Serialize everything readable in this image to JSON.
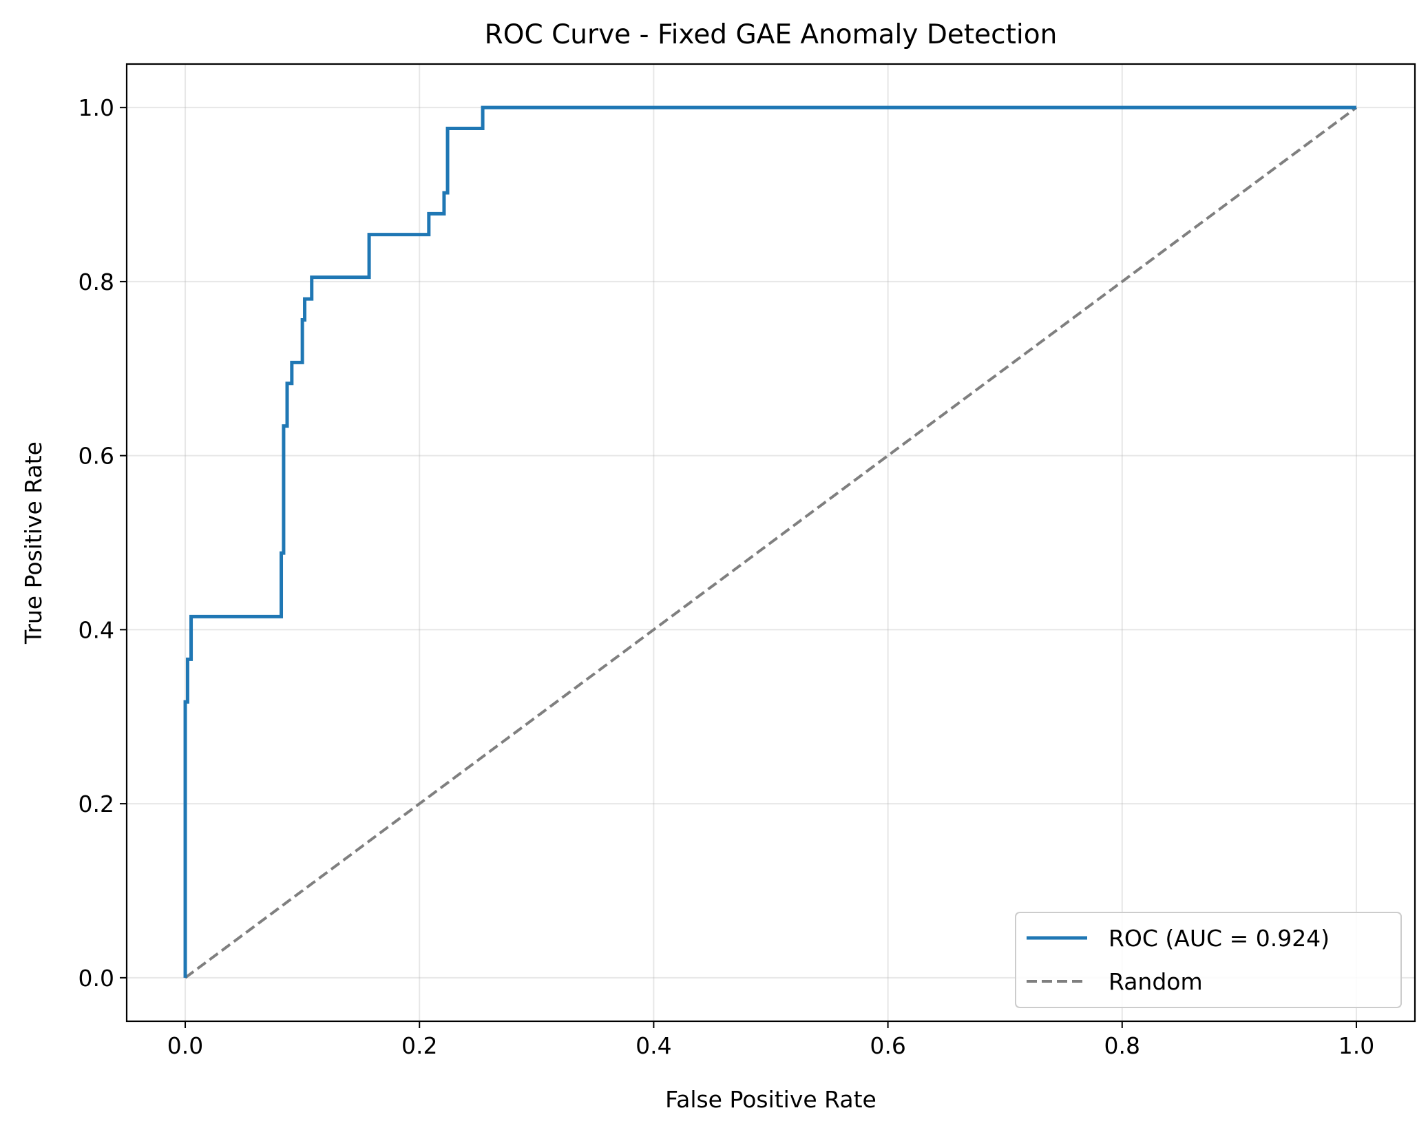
{
  "chart_data": {
    "type": "line",
    "title": "ROC Curve - Fixed GAE Anomaly Detection",
    "xlabel": "False Positive Rate",
    "ylabel": "True Positive Rate",
    "xlim": [
      -0.05,
      1.05
    ],
    "ylim": [
      -0.05,
      1.05
    ],
    "xticks": [
      0.0,
      0.2,
      0.4,
      0.6,
      0.8,
      1.0
    ],
    "yticks": [
      0.0,
      0.2,
      0.4,
      0.6,
      0.8,
      1.0
    ],
    "xtick_labels": [
      "0.0",
      "0.2",
      "0.4",
      "0.6",
      "0.8",
      "1.0"
    ],
    "ytick_labels": [
      "0.0",
      "0.2",
      "0.4",
      "0.6",
      "0.8",
      "1.0"
    ],
    "grid": true,
    "legend_position": "lower-right",
    "series": [
      {
        "name": "ROC (AUC = 0.924)",
        "color": "#1f77b4",
        "style": "solid",
        "x": [
          0.0,
          0.0,
          0.002,
          0.002,
          0.005,
          0.005,
          0.082,
          0.082,
          0.084,
          0.084,
          0.087,
          0.087,
          0.091,
          0.091,
          0.1,
          0.1,
          0.102,
          0.102,
          0.108,
          0.108,
          0.157,
          0.157,
          0.208,
          0.208,
          0.221,
          0.221,
          0.224,
          0.224,
          0.254,
          0.254,
          1.0
        ],
        "y": [
          0.0,
          0.317,
          0.317,
          0.366,
          0.366,
          0.415,
          0.415,
          0.488,
          0.488,
          0.634,
          0.634,
          0.683,
          0.683,
          0.707,
          0.707,
          0.756,
          0.756,
          0.78,
          0.78,
          0.805,
          0.805,
          0.854,
          0.854,
          0.878,
          0.878,
          0.902,
          0.902,
          0.976,
          0.976,
          1.0,
          1.0
        ]
      },
      {
        "name": "Random",
        "color": "#7f7f7f",
        "style": "dashed",
        "x": [
          0.0,
          1.0
        ],
        "y": [
          0.0,
          1.0
        ]
      }
    ]
  }
}
